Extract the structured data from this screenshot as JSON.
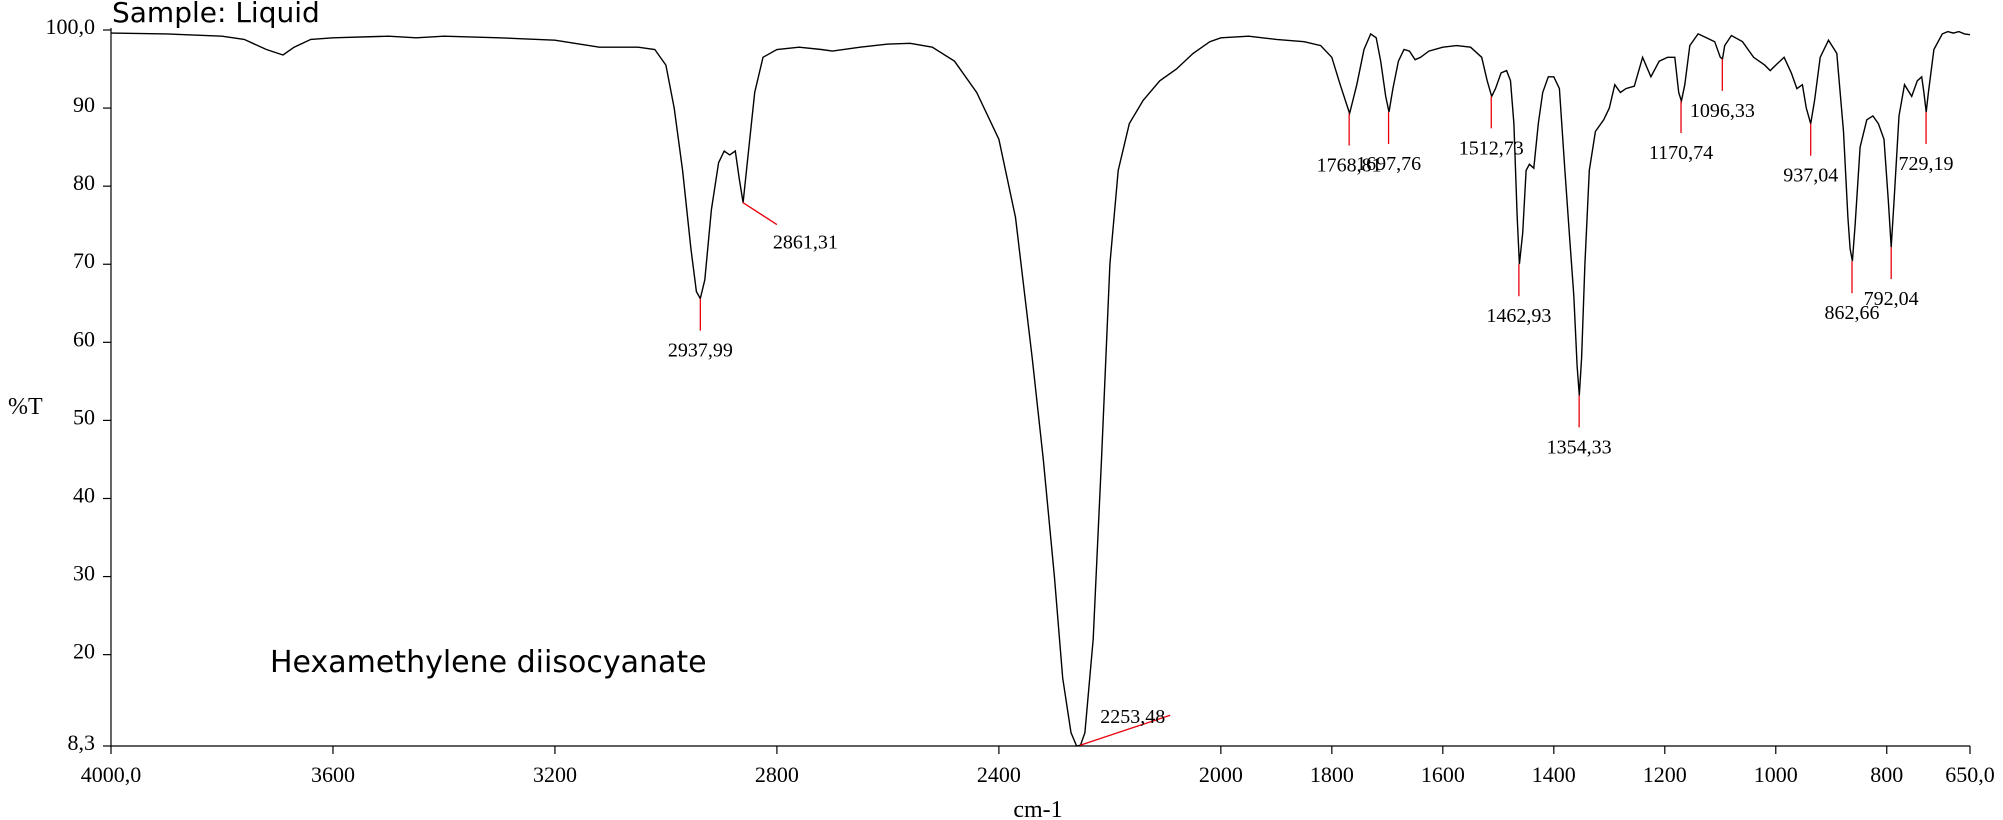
{
  "chart_data": {
    "type": "line",
    "title": "Sample: Liquid",
    "annotation": "Hexamethylene diisocyanate",
    "xlabel": "cm-1",
    "ylabel": "%T",
    "xlim": [
      4000,
      650
    ],
    "ylim": [
      8.3,
      100
    ],
    "x_reversed": true,
    "x_ticks": [
      {
        "value": 4000,
        "label": "4000,0"
      },
      {
        "value": 3600,
        "label": "3600"
      },
      {
        "value": 3200,
        "label": "3200"
      },
      {
        "value": 2800,
        "label": "2800"
      },
      {
        "value": 2400,
        "label": "2400"
      },
      {
        "value": 2000,
        "label": "2000"
      },
      {
        "value": 1800,
        "label": "1800"
      },
      {
        "value": 1600,
        "label": "1600"
      },
      {
        "value": 1400,
        "label": "1400"
      },
      {
        "value": 1200,
        "label": "1200"
      },
      {
        "value": 1000,
        "label": "1000"
      },
      {
        "value": 800,
        "label": "800"
      },
      {
        "value": 650,
        "label": "650,0"
      }
    ],
    "y_ticks": [
      {
        "value": 100,
        "label": "100,0"
      },
      {
        "value": 90,
        "label": "90"
      },
      {
        "value": 80,
        "label": "80"
      },
      {
        "value": 70,
        "label": "70"
      },
      {
        "value": 60,
        "label": "60"
      },
      {
        "value": 50,
        "label": "50"
      },
      {
        "value": 40,
        "label": "40"
      },
      {
        "value": 30,
        "label": "30"
      },
      {
        "value": 20,
        "label": "20"
      },
      {
        "value": 8.3,
        "label": "8,3"
      }
    ],
    "grid": false,
    "line_color": "#000000",
    "marker_color": "#e8000b",
    "series": [
      {
        "points": [
          [
            4000,
            99.6
          ],
          [
            3900,
            99.5
          ],
          [
            3800,
            99.2
          ],
          [
            3760,
            98.8
          ],
          [
            3720,
            97.5
          ],
          [
            3690,
            96.8
          ],
          [
            3670,
            97.8
          ],
          [
            3640,
            98.8
          ],
          [
            3600,
            99.0
          ],
          [
            3500,
            99.2
          ],
          [
            3450,
            99.0
          ],
          [
            3400,
            99.2
          ],
          [
            3300,
            99.0
          ],
          [
            3200,
            98.7
          ],
          [
            3120,
            97.8
          ],
          [
            3050,
            97.8
          ],
          [
            3020,
            97.5
          ],
          [
            3000,
            95.5
          ],
          [
            2985,
            90
          ],
          [
            2970,
            82
          ],
          [
            2955,
            72
          ],
          [
            2945,
            66.5
          ],
          [
            2938,
            65.6
          ],
          [
            2930,
            68
          ],
          [
            2918,
            77
          ],
          [
            2905,
            83
          ],
          [
            2895,
            84.5
          ],
          [
            2885,
            84
          ],
          [
            2875,
            84.5
          ],
          [
            2868,
            81
          ],
          [
            2861,
            77.9
          ],
          [
            2852,
            84
          ],
          [
            2840,
            92
          ],
          [
            2825,
            96.5
          ],
          [
            2800,
            97.5
          ],
          [
            2760,
            97.8
          ],
          [
            2720,
            97.5
          ],
          [
            2700,
            97.3
          ],
          [
            2650,
            97.8
          ],
          [
            2600,
            98.2
          ],
          [
            2560,
            98.3
          ],
          [
            2520,
            97.8
          ],
          [
            2480,
            96
          ],
          [
            2440,
            92
          ],
          [
            2400,
            86
          ],
          [
            2370,
            76
          ],
          [
            2340,
            58
          ],
          [
            2320,
            45
          ],
          [
            2300,
            30
          ],
          [
            2285,
            17
          ],
          [
            2270,
            10
          ],
          [
            2260,
            8.3
          ],
          [
            2253,
            8.4
          ],
          [
            2245,
            10
          ],
          [
            2230,
            22
          ],
          [
            2215,
            45
          ],
          [
            2200,
            70
          ],
          [
            2185,
            82
          ],
          [
            2165,
            88
          ],
          [
            2140,
            91
          ],
          [
            2110,
            93.5
          ],
          [
            2080,
            95
          ],
          [
            2050,
            97
          ],
          [
            2020,
            98.5
          ],
          [
            2000,
            99
          ],
          [
            1950,
            99.2
          ],
          [
            1900,
            98.8
          ],
          [
            1850,
            98.5
          ],
          [
            1820,
            98.0
          ],
          [
            1800,
            96.5
          ],
          [
            1785,
            93
          ],
          [
            1768,
            89.3
          ],
          [
            1755,
            93
          ],
          [
            1742,
            97.5
          ],
          [
            1730,
            99.5
          ],
          [
            1720,
            99.0
          ],
          [
            1712,
            96
          ],
          [
            1703,
            91.5
          ],
          [
            1697,
            89.5
          ],
          [
            1690,
            92.5
          ],
          [
            1680,
            96
          ],
          [
            1670,
            97.5
          ],
          [
            1660,
            97.3
          ],
          [
            1650,
            96.2
          ],
          [
            1640,
            96.5
          ],
          [
            1625,
            97.3
          ],
          [
            1600,
            97.8
          ],
          [
            1575,
            98.0
          ],
          [
            1550,
            97.8
          ],
          [
            1530,
            96.5
          ],
          [
            1520,
            93.5
          ],
          [
            1512,
            91.5
          ],
          [
            1505,
            92.5
          ],
          [
            1495,
            94.5
          ],
          [
            1485,
            94.8
          ],
          [
            1478,
            93.5
          ],
          [
            1472,
            88
          ],
          [
            1466,
            76
          ],
          [
            1462,
            70
          ],
          [
            1456,
            74
          ],
          [
            1450,
            82
          ],
          [
            1444,
            82.8
          ],
          [
            1436,
            82.3
          ],
          [
            1428,
            88
          ],
          [
            1420,
            92
          ],
          [
            1410,
            94
          ],
          [
            1400,
            94
          ],
          [
            1390,
            92.5
          ],
          [
            1380,
            82
          ],
          [
            1372,
            74
          ],
          [
            1364,
            66
          ],
          [
            1358,
            57
          ],
          [
            1354,
            53.2
          ],
          [
            1350,
            58
          ],
          [
            1344,
            70
          ],
          [
            1336,
            82
          ],
          [
            1325,
            87
          ],
          [
            1310,
            88.5
          ],
          [
            1300,
            90
          ],
          [
            1290,
            93
          ],
          [
            1280,
            92
          ],
          [
            1270,
            92.5
          ],
          [
            1255,
            92.8
          ],
          [
            1240,
            96.5
          ],
          [
            1225,
            94
          ],
          [
            1210,
            96
          ],
          [
            1195,
            96.5
          ],
          [
            1182,
            96.5
          ],
          [
            1175,
            92
          ],
          [
            1170,
            90.9
          ],
          [
            1164,
            93
          ],
          [
            1155,
            98
          ],
          [
            1140,
            99.5
          ],
          [
            1125,
            99
          ],
          [
            1110,
            98.5
          ],
          [
            1100,
            96.5
          ],
          [
            1096,
            96.3
          ],
          [
            1092,
            98
          ],
          [
            1080,
            99.3
          ],
          [
            1060,
            98.5
          ],
          [
            1040,
            96.5
          ],
          [
            1020,
            95.5
          ],
          [
            1010,
            94.8
          ],
          [
            1000,
            95.5
          ],
          [
            985,
            96.5
          ],
          [
            972,
            94.5
          ],
          [
            962,
            92.5
          ],
          [
            952,
            93
          ],
          [
            945,
            90
          ],
          [
            937,
            88.0
          ],
          [
            930,
            91
          ],
          [
            920,
            96.5
          ],
          [
            905,
            98.7
          ],
          [
            890,
            97
          ],
          [
            878,
            87
          ],
          [
            870,
            76
          ],
          [
            866,
            72
          ],
          [
            862,
            70.4
          ],
          [
            857,
            75
          ],
          [
            848,
            85
          ],
          [
            836,
            88.5
          ],
          [
            825,
            89
          ],
          [
            815,
            88
          ],
          [
            805,
            86
          ],
          [
            797,
            78
          ],
          [
            792,
            72.2
          ],
          [
            787,
            78
          ],
          [
            778,
            89
          ],
          [
            768,
            93
          ],
          [
            755,
            91.5
          ],
          [
            745,
            93.5
          ],
          [
            737,
            94
          ],
          [
            733,
            92
          ],
          [
            729,
            89.5
          ],
          [
            725,
            92
          ],
          [
            715,
            97.5
          ],
          [
            700,
            99.5
          ],
          [
            690,
            99.8
          ],
          [
            680,
            99.6
          ],
          [
            670,
            99.8
          ],
          [
            660,
            99.5
          ],
          [
            650,
            99.4
          ]
        ]
      }
    ],
    "peaks": [
      {
        "x": 2937.99,
        "y": 65.6,
        "label": "2937,99"
      },
      {
        "x": 2861.31,
        "y": 77.9,
        "label": "2861,31"
      },
      {
        "x": 2253.48,
        "y": 8.4,
        "label": "2253,48"
      },
      {
        "x": 1768.81,
        "y": 89.3,
        "label": "1768,81"
      },
      {
        "x": 1697.76,
        "y": 89.5,
        "label": "1697,76"
      },
      {
        "x": 1512.73,
        "y": 91.5,
        "label": "1512,73"
      },
      {
        "x": 1462.93,
        "y": 70.0,
        "label": "1462,93"
      },
      {
        "x": 1354.33,
        "y": 53.2,
        "label": "1354,33"
      },
      {
        "x": 1170.74,
        "y": 90.9,
        "label": "1170,74"
      },
      {
        "x": 1096.33,
        "y": 96.3,
        "label": "1096,33"
      },
      {
        "x": 937.04,
        "y": 88.0,
        "label": "937,04"
      },
      {
        "x": 862.66,
        "y": 70.4,
        "label": "862,66"
      },
      {
        "x": 792.04,
        "y": 72.2,
        "label": "792,04"
      },
      {
        "x": 729.19,
        "y": 89.5,
        "label": "729,19"
      }
    ]
  }
}
